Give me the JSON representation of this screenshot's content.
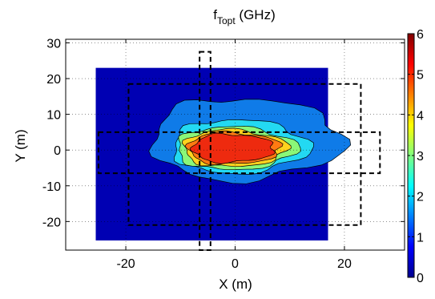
{
  "chart_data": {
    "type": "heatmap",
    "title": {
      "base": "f",
      "sub": "Topt",
      "rest": " (GHz)"
    },
    "xlabel": "X (m)",
    "ylabel": "Y (m)",
    "xlim": [
      -31,
      31
    ],
    "ylim": [
      -28,
      31
    ],
    "xticks": [
      -20,
      0,
      20
    ],
    "yticks": [
      -20,
      -10,
      0,
      10,
      20,
      30
    ],
    "grid": true,
    "heatmap_extent": {
      "x": [
        -25.5,
        17.0
      ],
      "y": [
        -25.3,
        23.0
      ]
    },
    "background_value": 0.3,
    "contour_levels": [
      {
        "level": 1.0,
        "color": "#0f7be8",
        "cx": -0.5,
        "cy": 3.0,
        "rx": 17.5,
        "ry": 11.5
      },
      {
        "level": 2.0,
        "color": "#23d9f2",
        "cx": -1.0,
        "cy": 1.0,
        "rx": 12.5,
        "ry": 7.5
      },
      {
        "level": 3.0,
        "color": "#8af778",
        "cx": -1.5,
        "cy": 0.5,
        "rx": 11.0,
        "ry": 6.0
      },
      {
        "level": 4.0,
        "color": "#ffd21e",
        "cx": -1.5,
        "cy": 0.5,
        "rx": 9.5,
        "ry": 5.2
      },
      {
        "level": 4.5,
        "color": "#ff7a12",
        "cx": -1.5,
        "cy": 0.5,
        "rx": 8.5,
        "ry": 4.5
      },
      {
        "level": 5.0,
        "color": "#ee2a0f",
        "cx": -1.5,
        "cy": 0.5,
        "rx": 7.5,
        "ry": 4.0
      }
    ],
    "dashed_outlines": [
      {
        "x": [
          -19.5,
          23.0
        ],
        "y": [
          -21.0,
          18.5
        ]
      },
      {
        "x": [
          -25.0,
          26.5
        ],
        "y": [
          -6.5,
          5.0
        ]
      },
      {
        "x": [
          -6.5,
          -4.5
        ],
        "y": [
          -28.0,
          27.5
        ]
      }
    ],
    "colorbar": {
      "min": 0,
      "max": 6,
      "ticks": [
        0,
        1,
        2,
        3,
        4,
        5,
        6
      ]
    }
  }
}
